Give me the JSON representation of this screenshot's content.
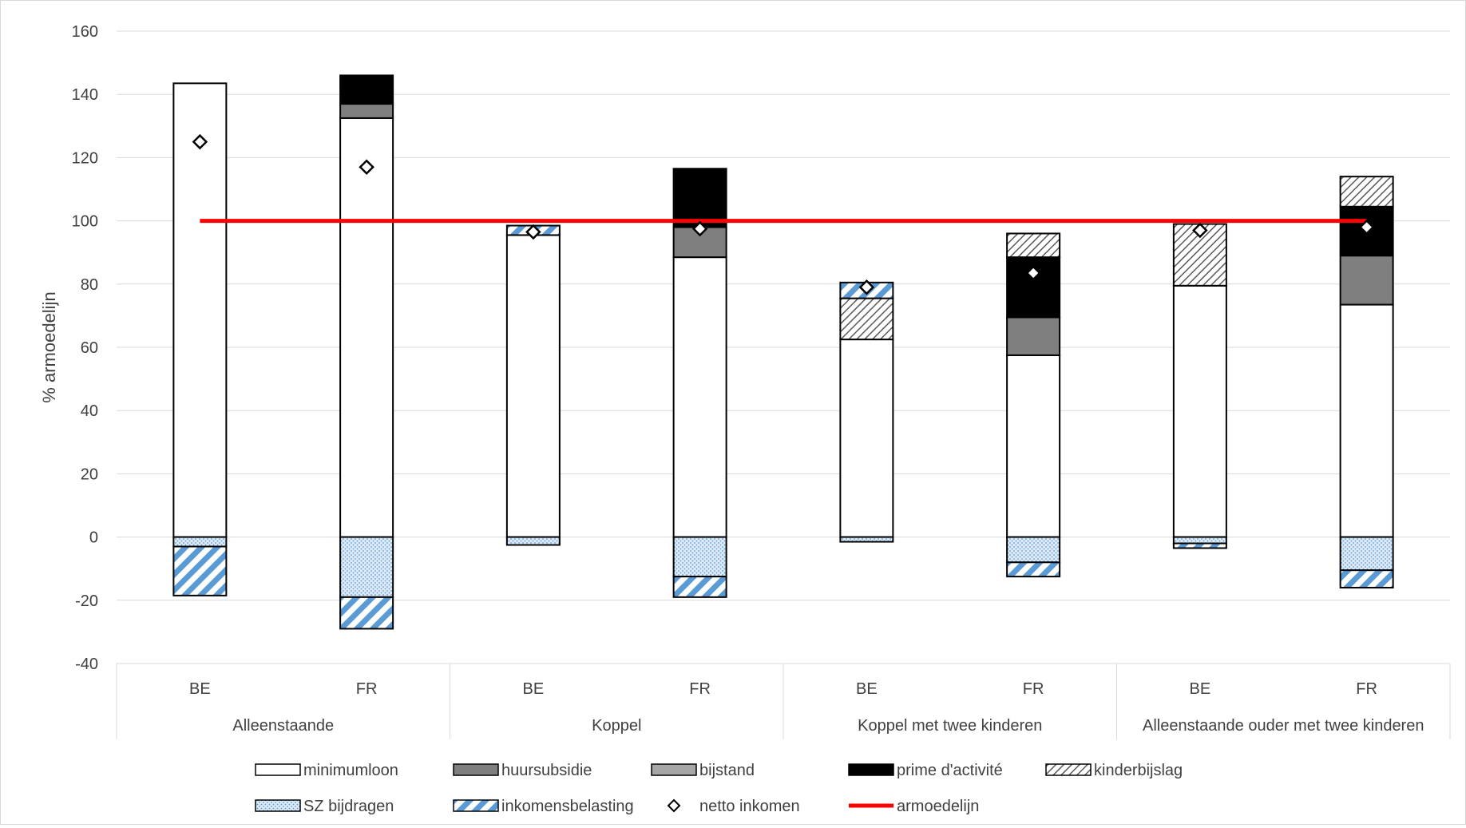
{
  "chart_data": {
    "type": "bar",
    "stacked": true,
    "title": "",
    "xlabel": "",
    "ylabel": "% armoedelijn",
    "ylim": [
      -40,
      160
    ],
    "yticks": [
      160,
      140,
      120,
      100,
      80,
      60,
      40,
      20,
      0,
      -20,
      -40
    ],
    "grid": true,
    "legend_position": "bottom",
    "groups": [
      {
        "label": "Alleenstaande",
        "categories": [
          "BE",
          "FR"
        ]
      },
      {
        "label": "Koppel",
        "categories": [
          "BE",
          "FR"
        ]
      },
      {
        "label": "Koppel met twee kinderen",
        "categories": [
          "BE",
          "FR"
        ]
      },
      {
        "label": "Alleenstaande ouder met twee kinderen",
        "categories": [
          "BE",
          "FR"
        ]
      }
    ],
    "categories": [
      "BE",
      "FR",
      "BE",
      "FR",
      "BE",
      "FR",
      "BE",
      "FR"
    ],
    "series": [
      {
        "name": "minimumloon",
        "fill": "white",
        "values": [
          143.5,
          132.5,
          95.5,
          88.5,
          62.5,
          57.5,
          79.5,
          73.5
        ]
      },
      {
        "name": "huursubsidie",
        "fill": "#7f7f7f",
        "values": [
          0,
          4.5,
          0,
          9.5,
          0,
          12,
          0,
          15.5
        ]
      },
      {
        "name": "bijstand",
        "fill": "#a6a6a6",
        "values": [
          0,
          0,
          0,
          0,
          0,
          0,
          0,
          0
        ]
      },
      {
        "name": "prime d'activité",
        "fill": "#000000",
        "values": [
          0,
          9,
          0,
          18.5,
          0,
          19,
          0,
          15.5
        ]
      },
      {
        "name": "kinderbijslag",
        "fill": "pattern-crosshatch",
        "values": [
          0,
          0,
          0,
          0,
          13,
          7.5,
          19.5,
          9.5
        ]
      },
      {
        "name": "SZ bijdragen",
        "fill": "pattern-dots",
        "values": [
          -3,
          -19,
          -2.5,
          -12.5,
          -1.5,
          -8,
          -2,
          -10.5
        ]
      },
      {
        "name": "inkomensbelasting",
        "fill": "pattern-stripes",
        "values": [
          -15.5,
          -10,
          3,
          -6.5,
          5,
          -4.5,
          -1.5,
          -5.5
        ]
      }
    ],
    "markers": {
      "name": "netto inkomen",
      "values": [
        125,
        117,
        96.5,
        97.5,
        79,
        83.5,
        97,
        98
      ]
    },
    "reference_line": {
      "name": "armoedelijn",
      "value": 100,
      "color": "#ff0000"
    },
    "legend": [
      {
        "name": "minimumloon",
        "kind": "rect",
        "fill": "white"
      },
      {
        "name": "huursubsidie",
        "kind": "rect",
        "fill": "#7f7f7f"
      },
      {
        "name": "bijstand",
        "kind": "rect",
        "fill": "#a6a6a6"
      },
      {
        "name": "prime d'activité",
        "kind": "rect",
        "fill": "#000000"
      },
      {
        "name": "kinderbijslag",
        "kind": "rect",
        "fill": "pattern-crosshatch"
      },
      {
        "name": "SZ bijdragen",
        "kind": "rect",
        "fill": "pattern-dots"
      },
      {
        "name": "inkomensbelasting",
        "kind": "rect",
        "fill": "pattern-stripes"
      },
      {
        "name": "netto inkomen",
        "kind": "diamond"
      },
      {
        "name": "armoedelijn",
        "kind": "line",
        "color": "#ff0000"
      }
    ]
  }
}
